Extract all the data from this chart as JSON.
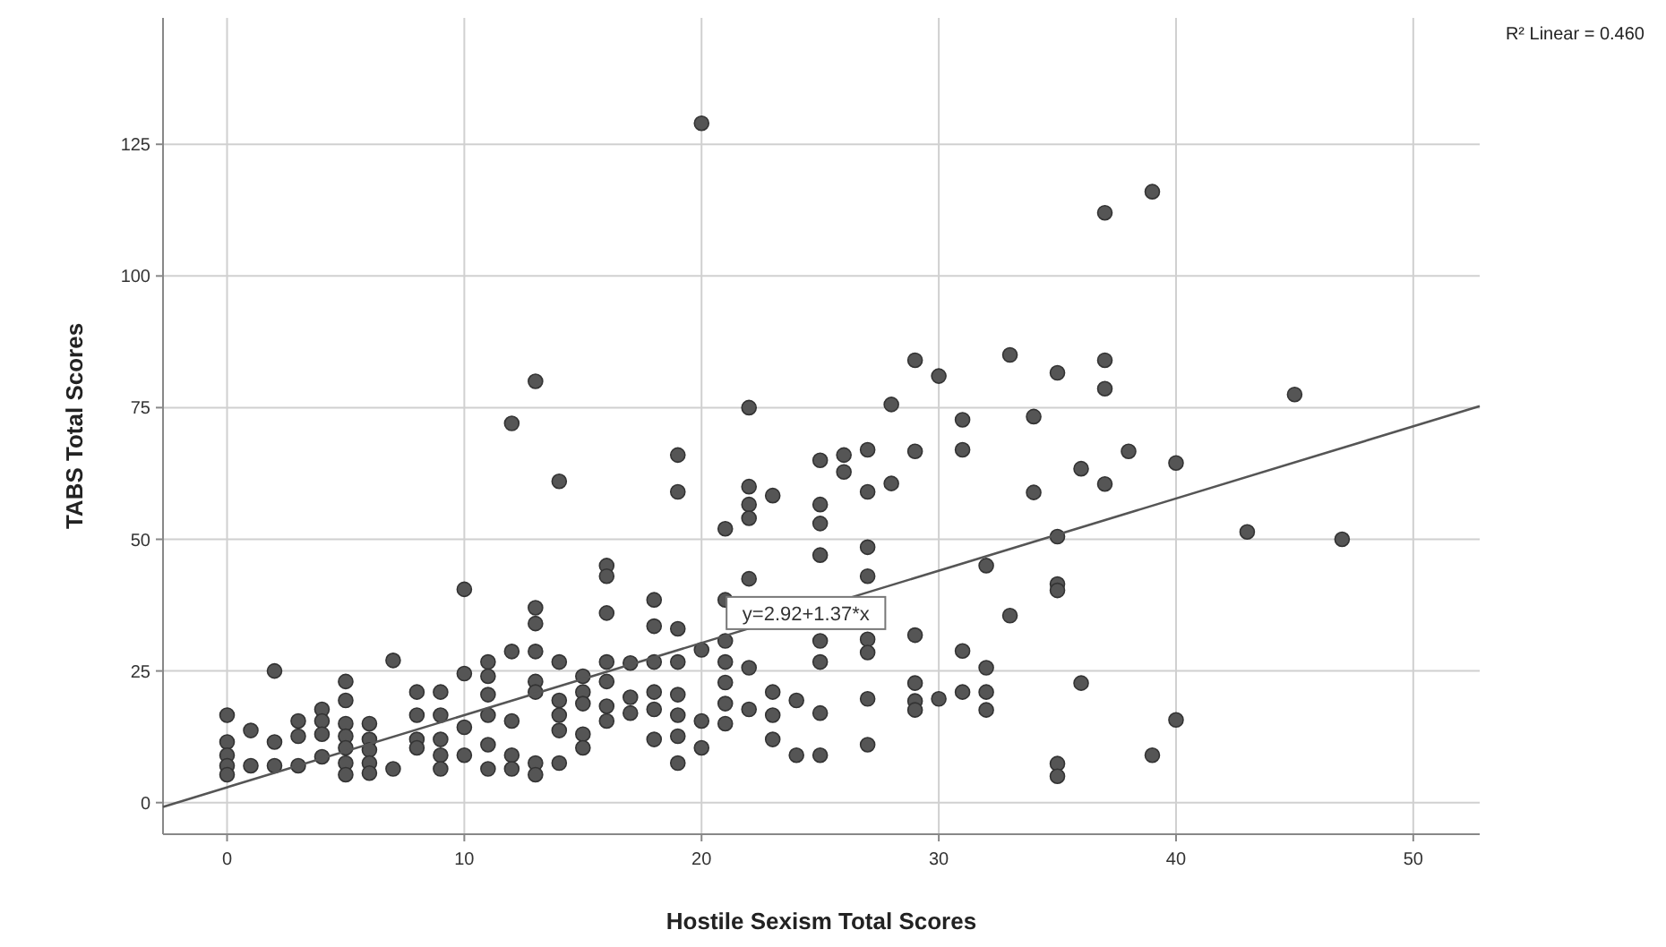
{
  "chart_data": {
    "type": "scatter",
    "xlabel": "Hostile Sexism Total Scores",
    "ylabel": "TABS Total Scores",
    "xlim": [
      -2.7,
      52.8
    ],
    "ylim": [
      -6,
      149
    ],
    "xticks": [
      0,
      10,
      20,
      30,
      40,
      50
    ],
    "yticks": [
      0,
      25,
      50,
      75,
      100,
      125
    ],
    "grid": true,
    "annotations": [
      "R² Linear = 0.460",
      {
        "text": "y=2.92+1.37*x",
        "x": 24.4,
        "y": 36
      }
    ],
    "series": [
      {
        "color": "#555555",
        "marker": "circle",
        "x": [
          0,
          0,
          0,
          0,
          0,
          1,
          1,
          2,
          2,
          2,
          3,
          3,
          3,
          4,
          4,
          4,
          4,
          5,
          5,
          5,
          5,
          5,
          5,
          5,
          6,
          6,
          6,
          6,
          6,
          7,
          7,
          8,
          8,
          8,
          8,
          9,
          9,
          9,
          9,
          9,
          10,
          10,
          10,
          10,
          11,
          11,
          11,
          11,
          11,
          11,
          12,
          12,
          12,
          12,
          12,
          13,
          13,
          13,
          13,
          13,
          13,
          13,
          13,
          14,
          14,
          14,
          14,
          14,
          14,
          15,
          15,
          15,
          15,
          15,
          16,
          16,
          16,
          16,
          16,
          16,
          16,
          17,
          17,
          17,
          18,
          18,
          18,
          18,
          18,
          18,
          19,
          19,
          19,
          19,
          19,
          19,
          19,
          19,
          20,
          20,
          20,
          20,
          21,
          21,
          21,
          21,
          21,
          21,
          21,
          22,
          22,
          22,
          22,
          22,
          22,
          22,
          23,
          23,
          23,
          23,
          24,
          24,
          25,
          25,
          25,
          25,
          25,
          25,
          25,
          25,
          26,
          26,
          27,
          27,
          27,
          27,
          27,
          27,
          27,
          27,
          28,
          28,
          29,
          29,
          29,
          29,
          29,
          29,
          30,
          30,
          31,
          31,
          31,
          31,
          32,
          32,
          32,
          32,
          33,
          33,
          34,
          34,
          35,
          35,
          35,
          35,
          35,
          35,
          36,
          36,
          37,
          37,
          37,
          37,
          38,
          39,
          39,
          40,
          40,
          43,
          45,
          47
        ],
        "values": [
          16.6,
          11.5,
          9,
          7,
          5.3,
          13.7,
          7,
          25,
          11.5,
          7,
          15.5,
          12.6,
          7,
          17.7,
          15.5,
          13,
          8.7,
          23,
          19.4,
          15,
          12.6,
          10.4,
          7.5,
          5.3,
          15,
          12,
          10,
          7.5,
          5.6,
          27,
          6.4,
          21,
          16.6,
          12,
          10.4,
          21,
          16.6,
          12,
          9,
          6.4,
          40.5,
          24.5,
          14.3,
          9,
          26.7,
          24,
          20.5,
          16.6,
          11,
          6.4,
          72,
          28.7,
          15.5,
          9,
          6.4,
          80,
          37,
          34,
          28.7,
          23,
          21,
          7.5,
          5.3,
          61,
          26.7,
          19.4,
          16.6,
          13.7,
          7.5,
          24,
          21,
          18.8,
          13,
          10.4,
          45,
          43,
          36,
          26.7,
          23,
          18.3,
          15.5,
          26.5,
          20,
          17,
          38.5,
          33.5,
          26.7,
          21,
          17.7,
          12,
          66,
          59,
          33,
          26.7,
          20.5,
          16.6,
          12.6,
          7.5,
          129,
          29,
          15.5,
          10.4,
          52,
          38.5,
          30.7,
          26.7,
          22.8,
          18.8,
          15,
          75,
          60,
          56.6,
          54,
          42.5,
          25.6,
          17.7,
          58.3,
          21,
          16.6,
          12,
          19.4,
          9,
          65,
          56.6,
          53,
          47,
          30.7,
          26.7,
          17,
          9,
          66,
          62.8,
          67,
          59,
          48.5,
          43,
          31,
          28.5,
          19.7,
          11,
          75.6,
          60.6,
          84,
          66.7,
          31.8,
          22.7,
          19.3,
          17.6,
          81,
          19.7,
          72.7,
          67,
          28.8,
          21,
          45,
          25.6,
          21,
          17.6,
          85,
          35.5,
          73.3,
          58.9,
          81.6,
          50.5,
          41.5,
          40.3,
          7.4,
          5,
          63.4,
          22.7,
          112,
          84,
          78.6,
          60.5,
          66.7,
          116,
          9,
          64.5,
          15.7,
          51.4,
          77.5,
          50
        ]
      },
      {
        "type": "line",
        "color": "#555555",
        "marker": "none",
        "x": [
          -2.7,
          52.8
        ],
        "values": [
          -0.8,
          75.3
        ]
      }
    ]
  }
}
